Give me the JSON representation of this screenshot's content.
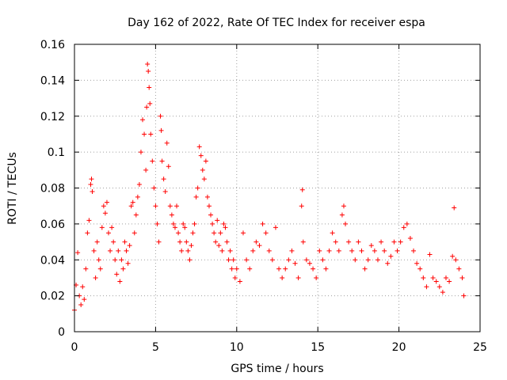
{
  "chart_data": {
    "type": "scatter",
    "title": "Day 162 of 2022, Rate Of TEC Index for receiver espa",
    "xlabel": "GPS time / hours",
    "ylabel": "ROTI / TECUs",
    "xlim": [
      0,
      25
    ],
    "ylim": [
      0,
      0.16
    ],
    "xticks": [
      0,
      5,
      10,
      15,
      20,
      25
    ],
    "xtick_labels": [
      "0",
      "5",
      "10",
      "15",
      "20",
      "25"
    ],
    "yticks": [
      0,
      0.02,
      0.04,
      0.06,
      0.08,
      0.1,
      0.12,
      0.14,
      0.16
    ],
    "ytick_labels": [
      "0",
      "0.02",
      "0.04",
      "0.06",
      "0.08",
      "0.1",
      "0.12",
      "0.14",
      "0.16"
    ],
    "grid": true,
    "marker": "plus",
    "color": "#ff0000",
    "series": [
      {
        "name": "ROTI",
        "points": [
          [
            0.0,
            0.012
          ],
          [
            0.1,
            0.026
          ],
          [
            0.2,
            0.044
          ],
          [
            0.3,
            0.02
          ],
          [
            0.4,
            0.015
          ],
          [
            0.5,
            0.025
          ],
          [
            0.6,
            0.018
          ],
          [
            0.7,
            0.035
          ],
          [
            0.8,
            0.055
          ],
          [
            0.9,
            0.062
          ],
          [
            1.0,
            0.082
          ],
          [
            1.05,
            0.085
          ],
          [
            1.1,
            0.078
          ],
          [
            1.2,
            0.045
          ],
          [
            1.3,
            0.03
          ],
          [
            1.4,
            0.05
          ],
          [
            1.5,
            0.04
          ],
          [
            1.6,
            0.035
          ],
          [
            1.7,
            0.058
          ],
          [
            1.8,
            0.07
          ],
          [
            1.9,
            0.066
          ],
          [
            2.0,
            0.072
          ],
          [
            2.1,
            0.055
          ],
          [
            2.2,
            0.045
          ],
          [
            2.3,
            0.058
          ],
          [
            2.4,
            0.05
          ],
          [
            2.5,
            0.04
          ],
          [
            2.6,
            0.032
          ],
          [
            2.7,
            0.045
          ],
          [
            2.8,
            0.028
          ],
          [
            2.9,
            0.04
          ],
          [
            3.0,
            0.035
          ],
          [
            3.1,
            0.05
          ],
          [
            3.2,
            0.045
          ],
          [
            3.3,
            0.038
          ],
          [
            3.4,
            0.048
          ],
          [
            3.5,
            0.07
          ],
          [
            3.6,
            0.072
          ],
          [
            3.7,
            0.055
          ],
          [
            3.8,
            0.065
          ],
          [
            3.9,
            0.075
          ],
          [
            4.0,
            0.082
          ],
          [
            4.1,
            0.1
          ],
          [
            4.2,
            0.118
          ],
          [
            4.3,
            0.11
          ],
          [
            4.4,
            0.09
          ],
          [
            4.45,
            0.125
          ],
          [
            4.5,
            0.149
          ],
          [
            4.55,
            0.145
          ],
          [
            4.6,
            0.136
          ],
          [
            4.65,
            0.127
          ],
          [
            4.7,
            0.11
          ],
          [
            4.8,
            0.095
          ],
          [
            4.9,
            0.08
          ],
          [
            5.0,
            0.07
          ],
          [
            5.1,
            0.06
          ],
          [
            5.2,
            0.05
          ],
          [
            5.3,
            0.12
          ],
          [
            5.35,
            0.112
          ],
          [
            5.4,
            0.095
          ],
          [
            5.5,
            0.085
          ],
          [
            5.6,
            0.078
          ],
          [
            5.7,
            0.105
          ],
          [
            5.8,
            0.092
          ],
          [
            5.9,
            0.07
          ],
          [
            6.0,
            0.065
          ],
          [
            6.1,
            0.06
          ],
          [
            6.2,
            0.058
          ],
          [
            6.3,
            0.07
          ],
          [
            6.4,
            0.055
          ],
          [
            6.5,
            0.05
          ],
          [
            6.6,
            0.045
          ],
          [
            6.7,
            0.06
          ],
          [
            6.8,
            0.058
          ],
          [
            6.9,
            0.05
          ],
          [
            7.0,
            0.045
          ],
          [
            7.1,
            0.04
          ],
          [
            7.2,
            0.048
          ],
          [
            7.3,
            0.055
          ],
          [
            7.4,
            0.06
          ],
          [
            7.5,
            0.075
          ],
          [
            7.6,
            0.08
          ],
          [
            7.7,
            0.103
          ],
          [
            7.8,
            0.098
          ],
          [
            7.9,
            0.09
          ],
          [
            8.0,
            0.085
          ],
          [
            8.1,
            0.095
          ],
          [
            8.2,
            0.075
          ],
          [
            8.3,
            0.07
          ],
          [
            8.4,
            0.065
          ],
          [
            8.5,
            0.06
          ],
          [
            8.6,
            0.055
          ],
          [
            8.7,
            0.05
          ],
          [
            8.8,
            0.062
          ],
          [
            8.9,
            0.048
          ],
          [
            9.0,
            0.055
          ],
          [
            9.1,
            0.045
          ],
          [
            9.2,
            0.06
          ],
          [
            9.3,
            0.058
          ],
          [
            9.4,
            0.05
          ],
          [
            9.5,
            0.04
          ],
          [
            9.6,
            0.045
          ],
          [
            9.7,
            0.035
          ],
          [
            9.8,
            0.04
          ],
          [
            9.9,
            0.03
          ],
          [
            10.0,
            0.035
          ],
          [
            10.2,
            0.028
          ],
          [
            10.4,
            0.055
          ],
          [
            10.6,
            0.04
          ],
          [
            10.8,
            0.035
          ],
          [
            11.0,
            0.045
          ],
          [
            11.2,
            0.05
          ],
          [
            11.4,
            0.048
          ],
          [
            11.6,
            0.06
          ],
          [
            11.8,
            0.055
          ],
          [
            12.0,
            0.045
          ],
          [
            12.2,
            0.04
          ],
          [
            12.4,
            0.058
          ],
          [
            12.6,
            0.035
          ],
          [
            12.8,
            0.03
          ],
          [
            13.0,
            0.035
          ],
          [
            13.2,
            0.04
          ],
          [
            13.4,
            0.045
          ],
          [
            13.6,
            0.038
          ],
          [
            13.8,
            0.03
          ],
          [
            14.0,
            0.07
          ],
          [
            14.05,
            0.079
          ],
          [
            14.1,
            0.05
          ],
          [
            14.3,
            0.04
          ],
          [
            14.5,
            0.038
          ],
          [
            14.7,
            0.035
          ],
          [
            14.9,
            0.03
          ],
          [
            15.1,
            0.045
          ],
          [
            15.3,
            0.04
          ],
          [
            15.5,
            0.035
          ],
          [
            15.7,
            0.045
          ],
          [
            15.9,
            0.055
          ],
          [
            16.1,
            0.05
          ],
          [
            16.3,
            0.045
          ],
          [
            16.5,
            0.065
          ],
          [
            16.6,
            0.07
          ],
          [
            16.7,
            0.06
          ],
          [
            16.9,
            0.05
          ],
          [
            17.1,
            0.045
          ],
          [
            17.3,
            0.04
          ],
          [
            17.5,
            0.05
          ],
          [
            17.7,
            0.045
          ],
          [
            17.9,
            0.035
          ],
          [
            18.1,
            0.04
          ],
          [
            18.3,
            0.048
          ],
          [
            18.5,
            0.045
          ],
          [
            18.7,
            0.04
          ],
          [
            18.9,
            0.05
          ],
          [
            19.1,
            0.045
          ],
          [
            19.3,
            0.038
          ],
          [
            19.5,
            0.042
          ],
          [
            19.7,
            0.05
          ],
          [
            19.9,
            0.045
          ],
          [
            20.1,
            0.05
          ],
          [
            20.3,
            0.058
          ],
          [
            20.5,
            0.06
          ],
          [
            20.7,
            0.052
          ],
          [
            20.9,
            0.045
          ],
          [
            21.1,
            0.038
          ],
          [
            21.3,
            0.035
          ],
          [
            21.5,
            0.03
          ],
          [
            21.7,
            0.025
          ],
          [
            21.9,
            0.043
          ],
          [
            22.1,
            0.03
          ],
          [
            22.3,
            0.028
          ],
          [
            22.5,
            0.025
          ],
          [
            22.7,
            0.022
          ],
          [
            22.9,
            0.03
          ],
          [
            23.1,
            0.028
          ],
          [
            23.3,
            0.042
          ],
          [
            23.4,
            0.069
          ],
          [
            23.5,
            0.04
          ],
          [
            23.7,
            0.035
          ],
          [
            23.9,
            0.03
          ],
          [
            24.0,
            0.02
          ]
        ]
      }
    ]
  }
}
